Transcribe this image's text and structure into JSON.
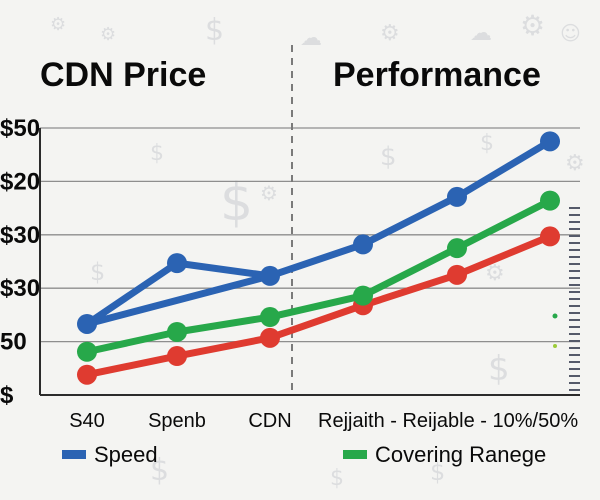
{
  "titles": {
    "left": "CDN Price",
    "right": "Performance"
  },
  "background_icons": [
    "dollar-icon",
    "gear-icon",
    "wrench-icon",
    "cloud-icon"
  ],
  "chart_data": {
    "type": "line",
    "title": "",
    "xlabel": "",
    "ylabel": "",
    "y_tick_labels": [
      "$50",
      "$20",
      "$30",
      "$30",
      "50",
      "$"
    ],
    "categories": [
      "S40",
      "Spenb",
      "CDN",
      "Rejjaith",
      "Reijable",
      "10%/50%",
      ""
    ],
    "x_tick_labels": [
      "S40",
      "Spenb",
      "CDN",
      "Rejjaith - Reijable - 10%/50%"
    ],
    "ylim": [
      0,
      5
    ],
    "grid": true,
    "legend_position": "bottom",
    "series": [
      {
        "name": "Speed",
        "color": "#2b63b3",
        "values": [
          1.33,
          2.47,
          2.23,
          2.82,
          3.71,
          4.75
        ],
        "x": [
          0,
          1,
          2,
          3,
          4,
          5
        ]
      },
      {
        "name": "",
        "color": "#27a84a",
        "values": [
          0.81,
          1.18,
          1.46,
          1.86,
          2.75,
          3.64
        ],
        "x": [
          0,
          1,
          2,
          3,
          4,
          5
        ]
      },
      {
        "name": "",
        "color": "#df3b30",
        "values": [
          0.38,
          0.73,
          1.07,
          1.68,
          2.25,
          2.97
        ],
        "x": [
          0,
          1,
          2,
          3,
          4,
          5
        ]
      }
    ],
    "speed_extra_point": {
      "x": 0.5,
      "y": 1.33
    },
    "legend": [
      {
        "label": "Speed",
        "color": "#2b63b3"
      },
      {
        "label": "Covering Ranege",
        "color": "#27a84a"
      }
    ],
    "divider_after_category": "CDN"
  },
  "colors": {
    "background": "#f4f4f2",
    "grid": "#8e8e8e",
    "axis": "#2b2b2b",
    "blue": "#2b63b3",
    "green": "#27a84a",
    "red": "#df3b30"
  }
}
